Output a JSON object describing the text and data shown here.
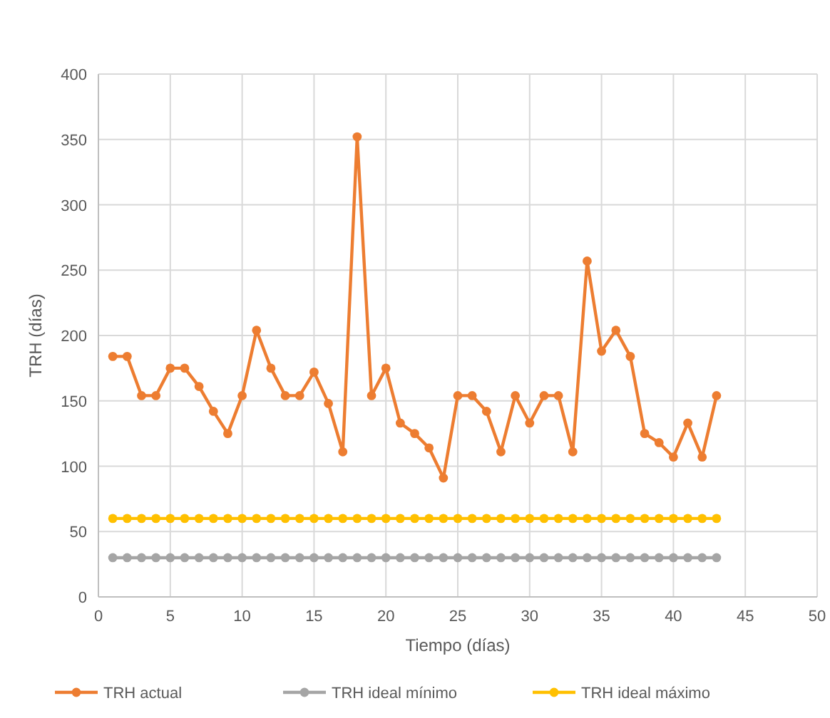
{
  "chart_data": {
    "type": "line",
    "xlabel": "Tiempo (días)",
    "ylabel": "TRH (días)",
    "x": [
      1,
      2,
      3,
      4,
      5,
      6,
      7,
      8,
      9,
      10,
      11,
      12,
      13,
      14,
      15,
      16,
      17,
      18,
      19,
      20,
      21,
      22,
      23,
      24,
      25,
      26,
      27,
      28,
      29,
      30,
      31,
      32,
      33,
      34,
      35,
      36,
      37,
      38,
      39,
      40,
      41,
      42,
      43
    ],
    "series": [
      {
        "name": "TRH actual",
        "color": "#ed7d31",
        "values": [
          184,
          184,
          154,
          154,
          175,
          175,
          161,
          142,
          125,
          154,
          204,
          175,
          154,
          154,
          172,
          148,
          111,
          352,
          154,
          175,
          133,
          125,
          114,
          91,
          154,
          154,
          142,
          111,
          154,
          133,
          154,
          154,
          111,
          257,
          188,
          204,
          184,
          125,
          118,
          107,
          133,
          107,
          154
        ]
      },
      {
        "name": "TRH ideal mínimo",
        "color": "#a5a5a5",
        "values": [
          30,
          30,
          30,
          30,
          30,
          30,
          30,
          30,
          30,
          30,
          30,
          30,
          30,
          30,
          30,
          30,
          30,
          30,
          30,
          30,
          30,
          30,
          30,
          30,
          30,
          30,
          30,
          30,
          30,
          30,
          30,
          30,
          30,
          30,
          30,
          30,
          30,
          30,
          30,
          30,
          30,
          30,
          30
        ]
      },
      {
        "name": "TRH ideal máximo",
        "color": "#ffc000",
        "values": [
          60,
          60,
          60,
          60,
          60,
          60,
          60,
          60,
          60,
          60,
          60,
          60,
          60,
          60,
          60,
          60,
          60,
          60,
          60,
          60,
          60,
          60,
          60,
          60,
          60,
          60,
          60,
          60,
          60,
          60,
          60,
          60,
          60,
          60,
          60,
          60,
          60,
          60,
          60,
          60,
          60,
          60,
          60
        ]
      }
    ],
    "xlim": [
      0,
      50
    ],
    "xticks": [
      0,
      5,
      10,
      15,
      20,
      25,
      30,
      35,
      40,
      45,
      50
    ],
    "ylim": [
      0,
      400
    ],
    "yticks": [
      0,
      50,
      100,
      150,
      200,
      250,
      300,
      350,
      400
    ],
    "grid": true,
    "legend": "bottom",
    "marker": "circle",
    "line_style": "solid"
  }
}
